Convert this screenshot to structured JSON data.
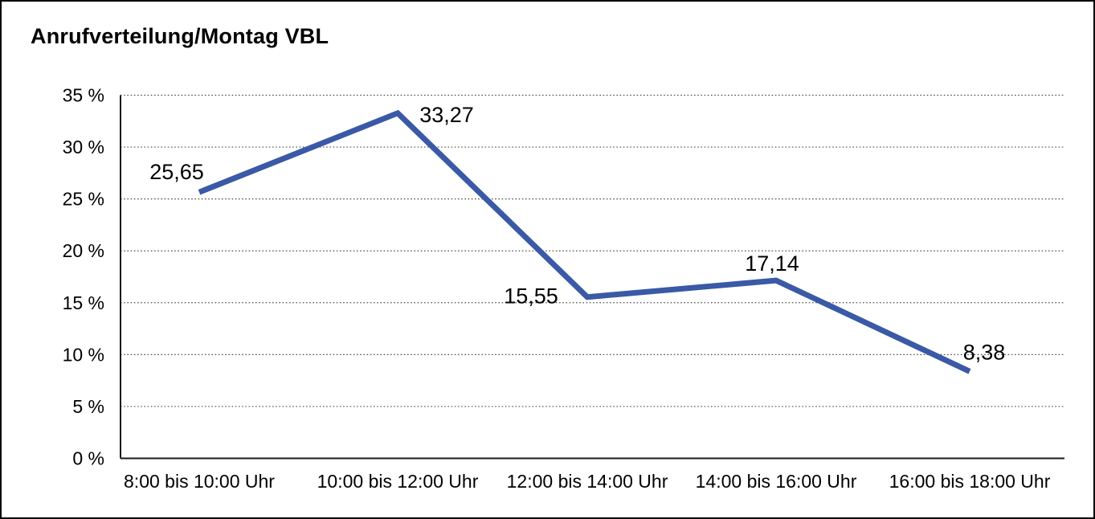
{
  "window": {
    "background": "#ffffff",
    "border_color": "#000000"
  },
  "chart_data": {
    "type": "line",
    "title": "Anrufverteilung/Montag VBL",
    "categories": [
      "8:00 bis 10:00 Uhr",
      "10:00 bis 12:00 Uhr",
      "12:00 bis 14:00 Uhr",
      "14:00 bis 16:00 Uhr",
      "16:00 bis 18:00 Uhr"
    ],
    "values": [
      25.65,
      33.27,
      15.55,
      17.14,
      8.38
    ],
    "value_labels": [
      "25,65",
      "33,27",
      "15,55",
      "17,14",
      "8,38"
    ],
    "xlabel": "",
    "ylabel": "",
    "ylim": [
      0,
      35
    ],
    "ytick_step": 5,
    "ytick_labels": [
      "0 %",
      "5 %",
      "10 %",
      "15 %",
      "20 %",
      "25 %",
      "30 %",
      "35 %"
    ],
    "unit": "%",
    "grid": {
      "horizontal": true,
      "style": "dotted",
      "color": "#4d4d4d"
    },
    "legend": "none",
    "line_color": "#3A59A6",
    "axis_color": "#1a1a1a",
    "text_color": "#000000"
  }
}
